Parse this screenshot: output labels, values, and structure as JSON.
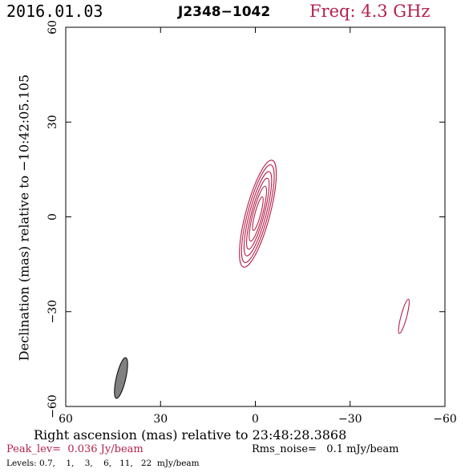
{
  "header": {
    "date": "2016.01.03",
    "source": "J2348−1042",
    "freq": "Freq: 4.3 GHz"
  },
  "colors": {
    "contour": "#b5204a",
    "beam": "#808080",
    "axes": "#000000"
  },
  "chart_data": {
    "type": "contour",
    "xlabel": "Right ascension (mas) relative to 23:48:28.3868",
    "ylabel": "Declination (mas) relative to −10:42:05.105",
    "xlim": [
      60,
      -60
    ],
    "ylim": [
      -60,
      60
    ],
    "x_ticks": [
      60,
      30,
      0,
      -30,
      -60
    ],
    "y_ticks": [
      60,
      30,
      0,
      -30,
      -60
    ],
    "x_tick_labels": [
      "60",
      "30",
      "0",
      "−30",
      "−60"
    ],
    "y_tick_labels": [
      "60",
      "30",
      "0",
      "−30",
      "−60"
    ],
    "peak_level_jy_per_beam": 0.036,
    "rms_noise_mjy_per_beam": 0.1,
    "levels_mjy_per_beam": [
      0.7,
      1,
      3,
      6,
      11,
      22
    ],
    "components": [
      {
        "center_x_mas": -0.8,
        "center_y_mas": 1.0,
        "pa_deg": 15,
        "contours": [
          {
            "level": 0.7,
            "major_mas": 17.5,
            "minor_mas": 3.8
          },
          {
            "level": 1,
            "major_mas": 16.0,
            "minor_mas": 3.2
          },
          {
            "level": 3,
            "major_mas": 13.8,
            "minor_mas": 2.6
          },
          {
            "level": 6,
            "major_mas": 11.6,
            "minor_mas": 2.0
          },
          {
            "level": 11,
            "major_mas": 9.0,
            "minor_mas": 1.5
          },
          {
            "level": 22,
            "major_mas": 5.5,
            "minor_mas": 0.9
          }
        ]
      },
      {
        "center_x_mas": -47,
        "center_y_mas": -31.5,
        "pa_deg": 15,
        "contours": [
          {
            "level": 0.7,
            "major_mas": 5.6,
            "minor_mas": 0.9
          }
        ]
      }
    ],
    "beam": {
      "center_x_mas": 42.5,
      "center_y_mas": -51,
      "major_mas": 6.6,
      "minor_mas": 1.5,
      "pa_deg": 13
    }
  },
  "footer": {
    "peak_text": "Peak_lev=  0.036 Jy/beam",
    "rms_text": "Rms_noise=   0.1 mJy/beam",
    "levels_text": "Levels: 0.7,    1,    3,    6,   11,   22  mJy/beam"
  }
}
